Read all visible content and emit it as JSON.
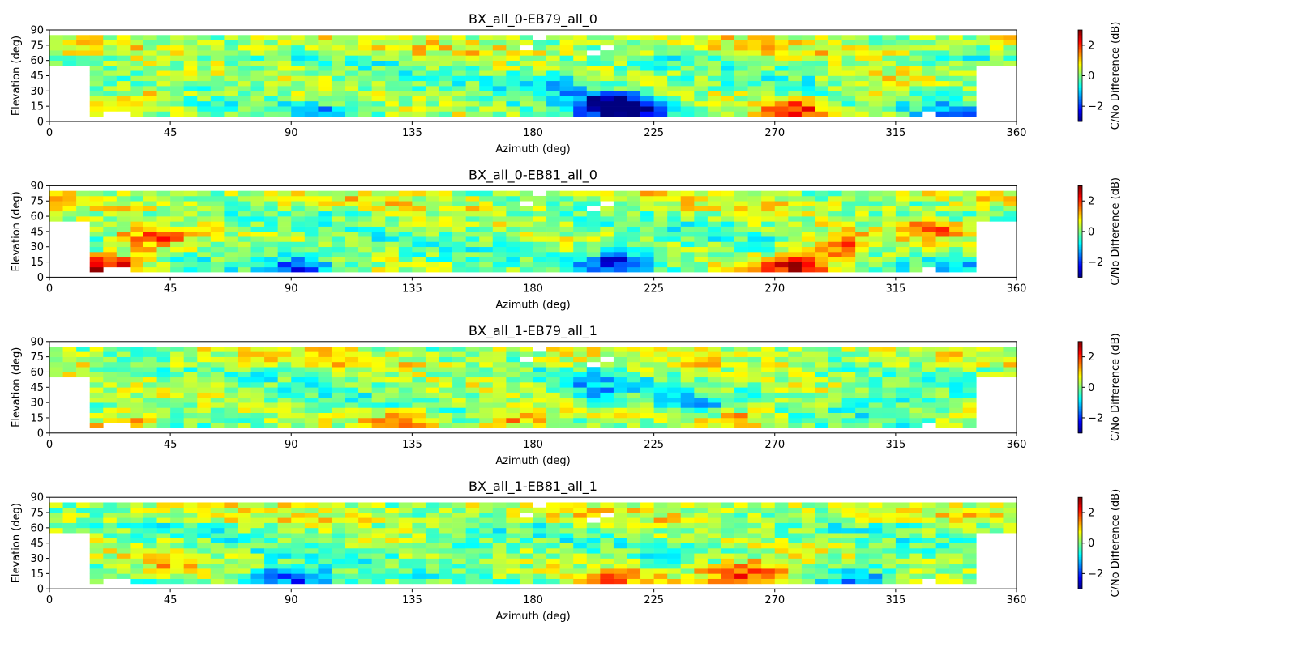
{
  "chart_data": [
    {
      "type": "heatmap",
      "title": "BX_all_0-EB79_all_0",
      "xlabel": "Azimuth (deg)",
      "ylabel": "Elevation (deg)",
      "colorbar_label": "C/No Difference (dB)",
      "xlim": [
        0,
        360
      ],
      "ylim": [
        0,
        90
      ],
      "xticks": [
        0,
        45,
        90,
        135,
        180,
        225,
        270,
        315,
        360
      ],
      "yticks": [
        0,
        15,
        30,
        45,
        60,
        75,
        90
      ],
      "clim": [
        -3,
        3
      ],
      "colorbar_ticks": [
        -2,
        0,
        2
      ],
      "colormap": "jet",
      "bin_size": {
        "azimuth": 5,
        "elevation": 5
      },
      "trends": [
        {
          "az": 205,
          "el": 15,
          "v": -2.5
        },
        {
          "az": 215,
          "el": 8,
          "v": -2.6
        },
        {
          "az": 185,
          "el": 35,
          "v": -1.1
        },
        {
          "az": 275,
          "el": 8,
          "v": 1.8
        },
        {
          "az": 35,
          "el": 25,
          "v": 1.0
        },
        {
          "az": 305,
          "el": 32,
          "v": 0.9
        },
        {
          "az": 100,
          "el": 8,
          "v": -1.0
        },
        {
          "az": 335,
          "el": 8,
          "v": -1.2
        }
      ],
      "empty_bins": [
        [
          180,
          80
        ],
        [
          200,
          65
        ],
        [
          175,
          70
        ],
        [
          205,
          70
        ]
      ]
    },
    {
      "type": "heatmap",
      "title": "BX_all_0-EB81_all_0",
      "xlabel": "Azimuth (deg)",
      "ylabel": "Elevation (deg)",
      "colorbar_label": "C/No Difference (dB)",
      "xlim": [
        0,
        360
      ],
      "ylim": [
        0,
        90
      ],
      "xticks": [
        0,
        45,
        90,
        135,
        180,
        225,
        270,
        315,
        360
      ],
      "yticks": [
        0,
        15,
        30,
        45,
        60,
        75,
        90
      ],
      "clim": [
        -3,
        3
      ],
      "colorbar_ticks": [
        -2,
        0,
        2
      ],
      "colormap": "jet",
      "bin_size": {
        "azimuth": 5,
        "elevation": 5
      },
      "trends": [
        {
          "az": 210,
          "el": 12,
          "v": -2.4
        },
        {
          "az": 275,
          "el": 8,
          "v": 2.6
        },
        {
          "az": 290,
          "el": 28,
          "v": 1.7
        },
        {
          "az": 35,
          "el": 35,
          "v": 1.8
        },
        {
          "az": 20,
          "el": 8,
          "v": 2.5
        },
        {
          "az": 90,
          "el": 8,
          "v": -1.8
        },
        {
          "az": 325,
          "el": 45,
          "v": 1.6
        },
        {
          "az": 340,
          "el": 8,
          "v": -1.0
        }
      ],
      "empty_bins": [
        [
          180,
          80
        ],
        [
          200,
          65
        ],
        [
          175,
          70
        ],
        [
          205,
          70
        ]
      ]
    },
    {
      "type": "heatmap",
      "title": "BX_all_1-EB79_all_1",
      "xlabel": "Azimuth (deg)",
      "ylabel": "Elevation (deg)",
      "colorbar_label": "C/No Difference (dB)",
      "xlim": [
        0,
        360
      ],
      "ylim": [
        0,
        90
      ],
      "xticks": [
        0,
        45,
        90,
        135,
        180,
        225,
        270,
        315,
        360
      ],
      "yticks": [
        0,
        15,
        30,
        45,
        60,
        75,
        90
      ],
      "clim": [
        -3,
        3
      ],
      "colorbar_ticks": [
        -2,
        0,
        2
      ],
      "colormap": "jet",
      "bin_size": {
        "azimuth": 5,
        "elevation": 5
      },
      "trends": [
        {
          "az": 130,
          "el": 8,
          "v": 1.6
        },
        {
          "az": 170,
          "el": 10,
          "v": 1.5
        },
        {
          "az": 255,
          "el": 12,
          "v": 1.3
        },
        {
          "az": 25,
          "el": 8,
          "v": 1.4
        },
        {
          "az": 200,
          "el": 40,
          "v": -1.0
        },
        {
          "az": 310,
          "el": 25,
          "v": -0.9
        },
        {
          "az": 240,
          "el": 25,
          "v": -0.8
        }
      ],
      "empty_bins": [
        [
          180,
          80
        ],
        [
          200,
          65
        ],
        [
          175,
          70
        ],
        [
          205,
          70
        ]
      ]
    },
    {
      "type": "heatmap",
      "title": "BX_all_1-EB81_all_1",
      "xlabel": "Azimuth (deg)",
      "ylabel": "Elevation (deg)",
      "colorbar_label": "C/No Difference (dB)",
      "xlim": [
        0,
        360
      ],
      "ylim": [
        0,
        90
      ],
      "xticks": [
        0,
        45,
        90,
        135,
        180,
        225,
        270,
        315,
        360
      ],
      "yticks": [
        0,
        15,
        30,
        45,
        60,
        75,
        90
      ],
      "clim": [
        -3,
        3
      ],
      "colorbar_ticks": [
        -2,
        0,
        2
      ],
      "colormap": "jet",
      "bin_size": {
        "azimuth": 5,
        "elevation": 5
      },
      "trends": [
        {
          "az": 88,
          "el": 8,
          "v": -2.2
        },
        {
          "az": 250,
          "el": 12,
          "v": 1.8
        },
        {
          "az": 265,
          "el": 15,
          "v": 1.3
        },
        {
          "az": 40,
          "el": 25,
          "v": 0.9
        },
        {
          "az": 300,
          "el": 8,
          "v": -1.2
        },
        {
          "az": 210,
          "el": 8,
          "v": 1.4
        },
        {
          "az": 150,
          "el": 40,
          "v": -0.7
        }
      ],
      "empty_bins": [
        [
          180,
          80
        ],
        [
          200,
          65
        ],
        [
          175,
          70
        ],
        [
          205,
          70
        ]
      ]
    }
  ]
}
